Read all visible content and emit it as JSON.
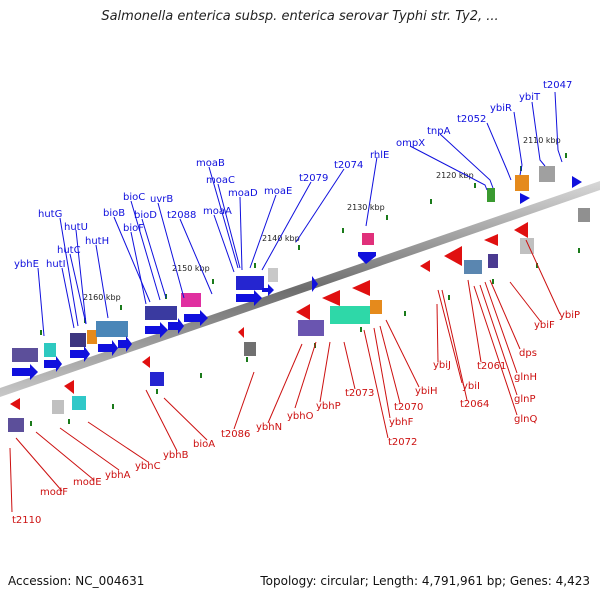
{
  "title": "Salmonella enterica subsp. enterica serovar Typhi str. Ty2, ...",
  "footer": {
    "accession": "Accession: NC_004631",
    "summary": "Topology: circular; Length: 4,791,961 bp; Genes: 4,423"
  },
  "colors": {
    "plus_strand_label": "#1010cc",
    "minus_strand_label": "#cc1010",
    "backbone": "#808080",
    "tick": "#1a7a1a"
  },
  "scale_ticks": [
    "2110 kbp",
    "2120 kbp",
    "2130 kbp",
    "2140 kbp",
    "2150 kbp",
    "2160 kbp"
  ],
  "genes_top": [
    "t2047",
    "ybiT",
    "ybiR",
    "t2052",
    "tnpA",
    "ompX",
    "rhlE",
    "t2074",
    "t2079",
    "moaE",
    "moaD",
    "moaC",
    "moaB",
    "moaA",
    "t2088",
    "uvrB",
    "bioD",
    "bioC",
    "bioB",
    "bioF",
    "hutG",
    "hutU",
    "hutC",
    "hutI",
    "hutH",
    "ybhE"
  ],
  "genes_bottom": [
    "ybiP",
    "ybiF",
    "dps",
    "glnH",
    "glnP",
    "glnQ",
    "t2061",
    "t2064",
    "ybiI",
    "ybiJ",
    "ybiH",
    "t2070",
    "ybhF",
    "t2072",
    "t2073",
    "ybhP",
    "ybhO",
    "ybhN",
    "t2086",
    "bioA",
    "ybhB",
    "ybhC",
    "ybhA",
    "modE",
    "modF",
    "t2110"
  ]
}
